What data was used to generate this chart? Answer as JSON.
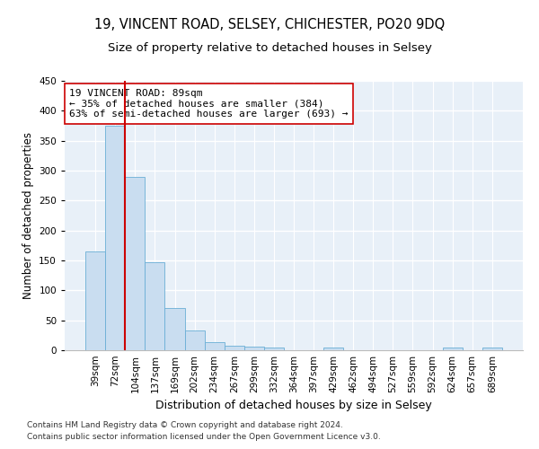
{
  "title1": "19, VINCENT ROAD, SELSEY, CHICHESTER, PO20 9DQ",
  "title2": "Size of property relative to detached houses in Selsey",
  "xlabel": "Distribution of detached houses by size in Selsey",
  "ylabel": "Number of detached properties",
  "categories": [
    "39sqm",
    "72sqm",
    "104sqm",
    "137sqm",
    "169sqm",
    "202sqm",
    "234sqm",
    "267sqm",
    "299sqm",
    "332sqm",
    "364sqm",
    "397sqm",
    "429sqm",
    "462sqm",
    "494sqm",
    "527sqm",
    "559sqm",
    "592sqm",
    "624sqm",
    "657sqm",
    "689sqm"
  ],
  "values": [
    165,
    375,
    290,
    147,
    70,
    33,
    14,
    7,
    6,
    4,
    0,
    0,
    4,
    0,
    0,
    0,
    0,
    0,
    4,
    0,
    4
  ],
  "bar_color": "#c9ddf0",
  "bar_edge_color": "#6aaed6",
  "vline_x": 1.5,
  "vline_color": "#cc0000",
  "annotation_text": "19 VINCENT ROAD: 89sqm\n← 35% of detached houses are smaller (384)\n63% of semi-detached houses are larger (693) →",
  "annotation_box_color": "#ffffff",
  "annotation_box_edge": "#cc0000",
  "ylim": [
    0,
    450
  ],
  "yticks": [
    0,
    50,
    100,
    150,
    200,
    250,
    300,
    350,
    400,
    450
  ],
  "background_color": "#e8f0f8",
  "grid_color": "#ffffff",
  "footer1": "Contains HM Land Registry data © Crown copyright and database right 2024.",
  "footer2": "Contains public sector information licensed under the Open Government Licence v3.0.",
  "title1_fontsize": 10.5,
  "title2_fontsize": 9.5,
  "xlabel_fontsize": 9,
  "ylabel_fontsize": 8.5,
  "tick_fontsize": 7.5,
  "annotation_fontsize": 8,
  "footer_fontsize": 6.5
}
